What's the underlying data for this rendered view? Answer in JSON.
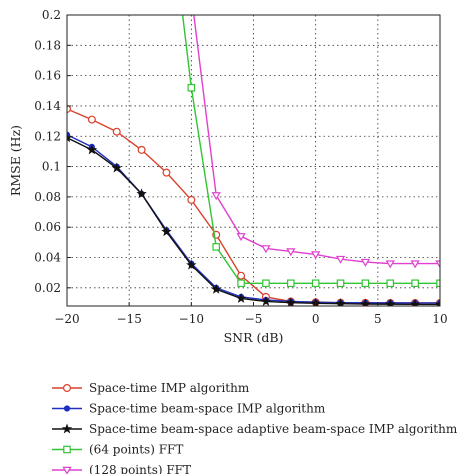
{
  "chart_data": {
    "type": "line",
    "title": "",
    "xlabel": "SNR (dB)",
    "ylabel": "RMSE (Hz)",
    "xlim": [
      -20,
      10
    ],
    "ylim": [
      0.008,
      0.2
    ],
    "grid": true,
    "legend_position": "bottom",
    "x_ticks": [
      -20,
      -15,
      -10,
      -5,
      0,
      5,
      10
    ],
    "x_tick_labels": [
      "−20",
      "−15",
      "−10",
      "−5",
      "0",
      "5",
      "10"
    ],
    "y_ticks": [
      0.02,
      0.04,
      0.06,
      0.08,
      0.1,
      0.12,
      0.14,
      0.16,
      0.18,
      0.2
    ],
    "y_tick_labels": [
      "0.02",
      "0.04",
      "0.06",
      "0.08",
      "0.1",
      "0.12",
      "0.14",
      "0.16",
      "0.18",
      "0.2"
    ],
    "series": [
      {
        "name": "Space-time IMP algorithm",
        "color": "#d9402b",
        "marker": "circle",
        "x": [
          -20,
          -18,
          -16,
          -14,
          -12,
          -10,
          -8,
          -6,
          -4,
          -2,
          0,
          2,
          4,
          6,
          8,
          10
        ],
        "y": [
          0.138,
          0.131,
          0.123,
          0.111,
          0.096,
          0.078,
          0.055,
          0.028,
          0.014,
          0.011,
          0.0105,
          0.0102,
          0.0101,
          0.01,
          0.01,
          0.01
        ]
      },
      {
        "name": "Space-time beam-space IMP algorithm",
        "color": "#1f2fbf",
        "marker": "dot",
        "x": [
          -20,
          -18,
          -16,
          -14,
          -12,
          -10,
          -8,
          -6,
          -4,
          -2,
          0,
          2,
          4,
          6,
          8,
          10
        ],
        "y": [
          0.121,
          0.113,
          0.1,
          0.082,
          0.058,
          0.036,
          0.02,
          0.014,
          0.012,
          0.011,
          0.0105,
          0.0102,
          0.0101,
          0.0101,
          0.01,
          0.01
        ]
      },
      {
        "name": "Space-time beam-space adaptive beam-space IMP algorithm",
        "color": "#111111",
        "marker": "star",
        "x": [
          -20,
          -18,
          -16,
          -14,
          -12,
          -10,
          -8,
          -6,
          -4,
          -2,
          0,
          2,
          4,
          6,
          8,
          10
        ],
        "y": [
          0.119,
          0.111,
          0.099,
          0.082,
          0.057,
          0.035,
          0.019,
          0.013,
          0.011,
          0.0102,
          0.0098,
          0.0095,
          0.0093,
          0.0092,
          0.0091,
          0.009
        ]
      },
      {
        "name": "(64 points) FFT",
        "color": "#33c433",
        "marker": "square",
        "x": [
          -10.7,
          -10,
          -8,
          -6,
          -4,
          -2,
          0,
          2,
          4,
          6,
          8,
          10
        ],
        "y": [
          0.2,
          0.152,
          0.047,
          0.023,
          0.023,
          0.023,
          0.023,
          0.023,
          0.023,
          0.023,
          0.023,
          0.023
        ]
      },
      {
        "name": "(128 points) FFT",
        "color": "#e040d0",
        "marker": "triangle-down",
        "x": [
          -9.8,
          -8,
          -6,
          -4,
          -2,
          0,
          2,
          4,
          6,
          8,
          10
        ],
        "y": [
          0.2,
          0.081,
          0.054,
          0.046,
          0.044,
          0.042,
          0.039,
          0.037,
          0.036,
          0.036,
          0.036
        ]
      }
    ]
  }
}
